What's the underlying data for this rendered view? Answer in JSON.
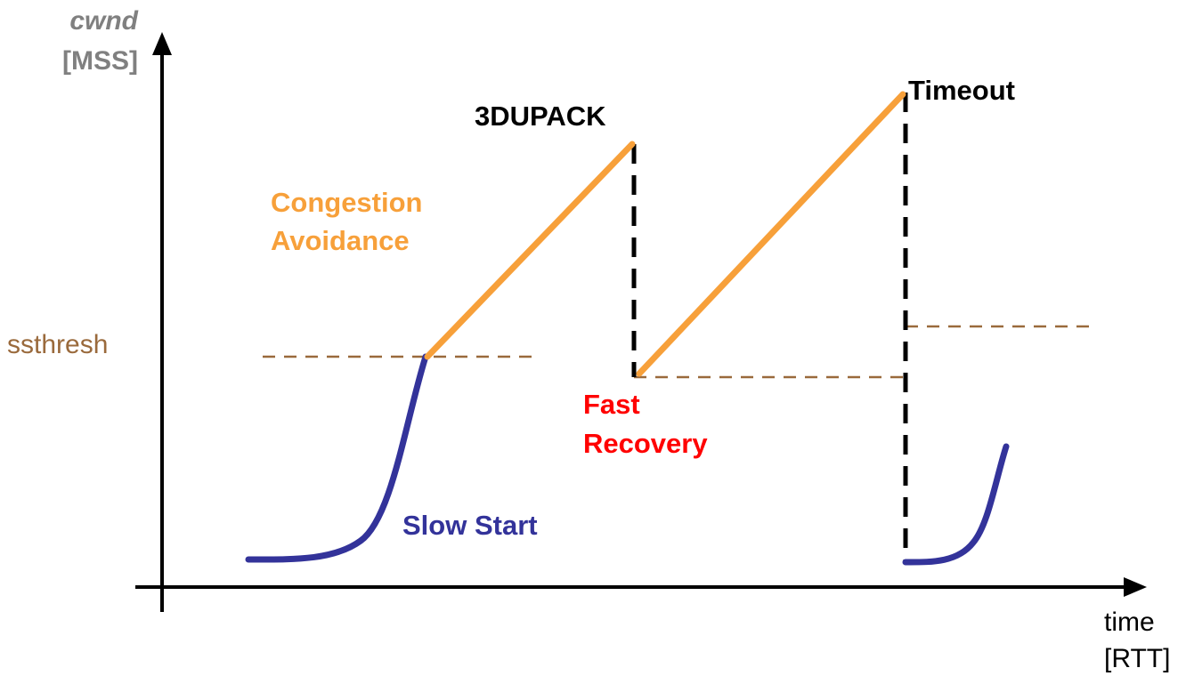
{
  "y_axis_label": {
    "line1": "cwnd",
    "line2": "[MSS]"
  },
  "x_axis_label": {
    "line1": "time",
    "line2": "[RTT]"
  },
  "threshold_label": "ssthresh",
  "phases": {
    "slow_start": "Slow Start",
    "congestion_avoidance_line1": "Congestion",
    "congestion_avoidance_line2": "Avoidance",
    "fast_recovery_line1": "Fast",
    "fast_recovery_line2": "Recovery"
  },
  "events": {
    "triple_dup_ack": "3DUPACK",
    "timeout": "Timeout"
  },
  "colors": {
    "axis": "#000000",
    "axis_label": "#808080",
    "slow_start": "#33339a",
    "congestion_avoidance": "#f7a03a",
    "ssthresh": "#9a6a3c",
    "fast_recovery": "#ff0000",
    "event": "#000000"
  }
}
